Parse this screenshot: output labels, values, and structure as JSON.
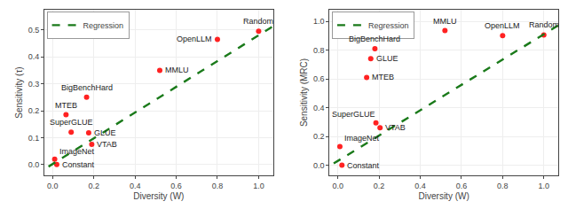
{
  "chart_data": [
    {
      "type": "scatter",
      "xlabel": "Diversity (W)",
      "ylabel": "Sensitivity (τ)",
      "xlim": [
        -0.04,
        1.07
      ],
      "ylim": [
        -0.04,
        0.575
      ],
      "xticks": [
        {
          "value": 0.0,
          "label": "0.0"
        },
        0.2,
        0.4,
        0.6,
        0.8,
        {
          "value": 1.0,
          "label": "1.0"
        }
      ],
      "yticks": [
        {
          "value": 0.0,
          "label": "0.0"
        },
        0.1,
        0.2,
        0.3,
        0.4,
        0.5
      ],
      "grid": true,
      "legend": "upper left",
      "series": [
        {
          "type": "scatter",
          "color": "#ff2222",
          "x": [
            0.02,
            0.01,
            0.09,
            0.175,
            0.19,
            0.065,
            0.165,
            0.52,
            0.8,
            1.0
          ],
          "values": [
            0.0,
            0.02,
            0.12,
            0.118,
            0.075,
            0.185,
            0.25,
            0.35,
            0.465,
            0.495
          ],
          "labels": [
            "Constant",
            "ImageNet",
            "SuperGLUE",
            "GLUE",
            "VTAB",
            "MTEB",
            "BigBenchHard",
            "MMLU",
            "OpenLLM",
            "Random"
          ]
        },
        {
          "name": "Regression",
          "type": "line",
          "color": "#1a7a1a",
          "line_style": "dashed",
          "x": [
            -0.02,
            1.07
          ],
          "values": [
            -0.00756,
            0.51346
          ]
        }
      ]
    },
    {
      "type": "scatter",
      "xlabel": "Diversity (W)",
      "ylabel": "Sensitivity (MRC)",
      "xlim": [
        -0.04,
        1.07
      ],
      "ylim": [
        -0.07,
        1.08
      ],
      "xticks": [
        {
          "value": 0.0,
          "label": "0.0"
        },
        0.2,
        0.4,
        0.6,
        0.8,
        {
          "value": 1.0,
          "label": "1.0"
        }
      ],
      "yticks": [
        {
          "value": 0.0,
          "label": "0.0"
        },
        0.2,
        0.4,
        0.6,
        0.8,
        {
          "value": 1.0,
          "label": "1.0"
        }
      ],
      "grid": true,
      "legend": "upper left",
      "series": [
        {
          "type": "scatter",
          "color": "#ff2222",
          "x": [
            0.02,
            0.01,
            0.185,
            0.205,
            0.16,
            0.14,
            0.18,
            0.52,
            0.8,
            1.0
          ],
          "values": [
            0.0,
            0.13,
            0.295,
            0.26,
            0.74,
            0.61,
            0.81,
            0.935,
            0.9,
            0.905
          ],
          "labels": [
            "Constant",
            "ImageNet",
            "SuperGLUE",
            "VTAB",
            "GLUE",
            "MTEB",
            "BigBenchHard",
            "MMLU",
            "OpenLLM",
            "Random"
          ]
        },
        {
          "name": "Regression",
          "type": "line",
          "color": "#1a7a1a",
          "line_style": "dashed",
          "x": [
            -0.02,
            1.07
          ],
          "values": [
            0.0124,
            0.9716
          ]
        }
      ]
    }
  ]
}
